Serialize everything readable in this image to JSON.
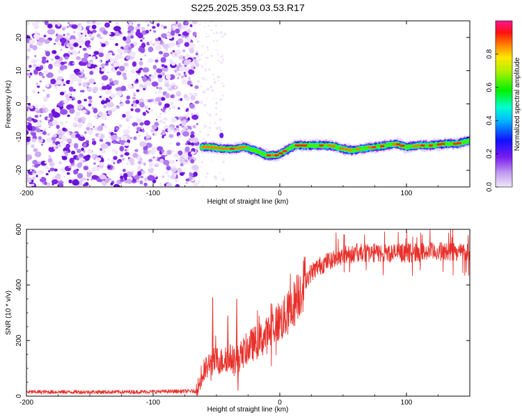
{
  "figure_title": "S225.2025.359.03.53.R17",
  "colors": {
    "snr_line": "#e8302a",
    "noise_purple": "#8a2be2",
    "axis": "#000000"
  },
  "chart_data": [
    {
      "type": "heatmap",
      "title": "",
      "xlabel": "Height of straight line (km)",
      "ylabel": "Frequency (Hz)",
      "xlim": [
        -200,
        150
      ],
      "ylim": [
        -25,
        25
      ],
      "xticks": [
        -200,
        -100,
        0,
        100
      ],
      "yticks": [
        -20,
        -10,
        0,
        10,
        20
      ],
      "xtick_labels": [
        "-200",
        "-100",
        "0",
        "100"
      ],
      "ytick_labels": [
        "-20",
        "-10",
        "0",
        "10",
        "20"
      ],
      "noise_region_x": [
        -200,
        -65
      ],
      "signal_start_x": -65,
      "ridge": {
        "x": [
          -62,
          -55,
          -45,
          -35,
          -28,
          -20,
          -10,
          -2,
          5,
          12,
          20,
          30,
          40,
          50,
          57,
          65,
          75,
          85,
          92,
          100,
          110,
          120,
          130,
          140,
          150
        ],
        "frequency": [
          -13,
          -13,
          -13.5,
          -13.5,
          -13,
          -14,
          -15.5,
          -15.5,
          -14,
          -12.5,
          -12.5,
          -12.5,
          -12.5,
          -13.5,
          -14,
          -13.5,
          -13,
          -12.5,
          -12,
          -13,
          -12.5,
          -12.5,
          -12,
          -12,
          -11
        ]
      },
      "colorbar": {
        "label": "Normalized spectral amplitude",
        "range": [
          0.0,
          1.0
        ],
        "ticks": [
          0.0,
          0.2,
          0.4,
          0.6,
          0.8
        ],
        "tick_labels": [
          "0.0",
          "0.2",
          "0.4",
          "0.6",
          "0.8"
        ]
      }
    },
    {
      "type": "line",
      "title": "",
      "xlabel": "Height of straight line (km)",
      "ylabel": "SNR (10 * v/v)",
      "xlim": [
        -200,
        150
      ],
      "ylim": [
        0,
        600
      ],
      "xticks": [
        -200,
        -100,
        0,
        100
      ],
      "yticks": [
        0,
        200,
        400,
        600
      ],
      "xtick_labels": [
        "-200",
        "-100",
        "0",
        "100"
      ],
      "ytick_labels": [
        "0",
        "200",
        "400",
        "600"
      ],
      "series": [
        {
          "name": "SNR",
          "x": [
            -200,
            -120,
            -66,
            -62,
            -58,
            -54,
            -50,
            -46,
            -42,
            -38,
            -34,
            -30,
            -26,
            -22,
            -18,
            -14,
            -10,
            -6,
            -2,
            2,
            6,
            10,
            14,
            18,
            22,
            26,
            30,
            36,
            44,
            52,
            60,
            80,
            100,
            120,
            150
          ],
          "y": [
            15,
            15,
            18,
            60,
            100,
            120,
            130,
            125,
            140,
            135,
            130,
            150,
            170,
            185,
            195,
            205,
            220,
            245,
            265,
            275,
            295,
            320,
            360,
            400,
            430,
            450,
            465,
            480,
            500,
            510,
            515,
            515,
            515,
            520,
            520
          ]
        }
      ],
      "spikes": [
        {
          "x": -53,
          "y": 355
        },
        {
          "x": -34,
          "y": 350
        },
        {
          "x": -41,
          "y": 290
        },
        {
          "x": -33,
          "y": 20
        }
      ]
    }
  ]
}
